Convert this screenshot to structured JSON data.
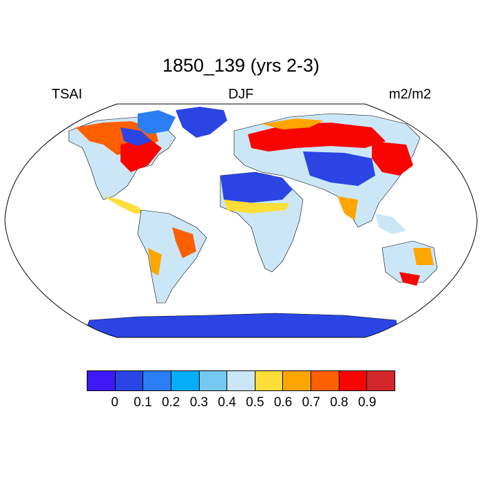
{
  "title": "1850_139 (yrs 2-3)",
  "left_label": "TSAI",
  "center_label": "DJF",
  "right_label": "m2/m2",
  "colorbar": {
    "colors": [
      "#3e18f6",
      "#2a45e4",
      "#2b7ef3",
      "#06aef9",
      "#75c8f0",
      "#cbe7f7",
      "#fddd37",
      "#fea500",
      "#fe5f00",
      "#f80501",
      "#d2282c"
    ],
    "labels": [
      "0",
      "0.1",
      "0.2",
      "0.3",
      "0.4",
      "0.5",
      "0.6",
      "0.7",
      "0.8",
      "0.9"
    ]
  },
  "map": {
    "projection": "Robinson",
    "ocean_color": "#ffffff",
    "land_outline_color": "#000000"
  }
}
